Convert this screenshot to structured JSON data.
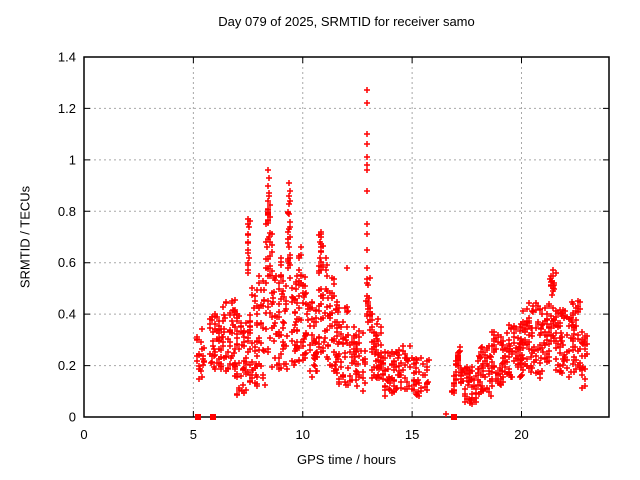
{
  "header": {
    "title": "Day 079 of 2025, SRMTID for receiver samo"
  },
  "chart_data": {
    "type": "scatter",
    "title": "Day 079 of 2025, SRMTID for receiver samo",
    "xlabel": "GPS time / hours",
    "ylabel": "SRMTID / TECUs",
    "xlim": [
      0,
      24
    ],
    "ylim": [
      0,
      1.4
    ],
    "xticks": {
      "values": [
        0,
        5,
        10,
        15,
        20
      ],
      "labels": [
        "0",
        "5",
        "10",
        "15",
        "20"
      ]
    },
    "yticks": {
      "values": [
        0,
        0.2,
        0.4,
        0.6,
        0.8,
        1.0,
        1.2,
        1.4
      ],
      "labels": [
        "0",
        "0.2",
        "0.4",
        "0.6",
        "0.8",
        "1",
        "1.2",
        "1.4"
      ]
    },
    "grid": true,
    "legend": "none",
    "marker": {
      "shape": "plus",
      "color": "#ff0000",
      "size": 7
    },
    "axis_color": "#000000",
    "grid_color": "#a8a8a8",
    "points": [
      [
        12.93,
        1.27
      ],
      [
        12.93,
        1.22
      ],
      [
        12.94,
        1.1
      ],
      [
        12.93,
        1.06
      ],
      [
        12.93,
        1.01
      ],
      [
        12.94,
        0.98
      ],
      [
        12.93,
        0.96
      ],
      [
        12.94,
        0.88
      ],
      [
        12.93,
        0.75
      ],
      [
        12.94,
        0.71
      ],
      [
        12.95,
        0.65
      ],
      [
        12.93,
        0.58
      ],
      [
        12.95,
        0.52
      ],
      [
        12.94,
        0.47
      ],
      [
        12.96,
        0.44
      ],
      [
        12.95,
        0.4
      ],
      [
        12.0,
        0.58
      ],
      [
        8.42,
        0.96
      ],
      [
        8.45,
        0.93
      ],
      [
        8.43,
        0.9
      ],
      [
        8.46,
        0.87
      ],
      [
        8.44,
        0.86
      ],
      [
        8.4,
        0.84
      ],
      [
        8.47,
        0.7
      ],
      [
        8.5,
        0.68
      ],
      [
        8.38,
        0.66
      ],
      [
        9.38,
        0.91
      ],
      [
        9.4,
        0.88
      ],
      [
        9.37,
        0.86
      ],
      [
        9.41,
        0.84
      ],
      [
        9.39,
        0.83
      ],
      [
        9.36,
        0.79
      ],
      [
        9.42,
        0.76
      ],
      [
        9.38,
        0.73
      ],
      [
        9.4,
        0.7
      ],
      [
        9.37,
        0.66
      ],
      [
        9.43,
        0.63
      ],
      [
        9.39,
        0.6
      ],
      [
        7.5,
        0.77
      ],
      [
        7.52,
        0.74
      ],
      [
        7.49,
        0.71
      ],
      [
        7.51,
        0.68
      ],
      [
        7.5,
        0.65
      ],
      [
        7.53,
        0.62
      ],
      [
        7.48,
        0.6
      ],
      [
        10.82,
        0.72
      ],
      [
        10.84,
        0.7
      ],
      [
        10.8,
        0.68
      ],
      [
        10.83,
        0.66
      ],
      [
        10.85,
        0.64
      ],
      [
        10.81,
        0.62
      ],
      [
        11.08,
        0.62
      ],
      [
        11.1,
        0.59
      ],
      [
        11.06,
        0.57
      ],
      [
        11.12,
        0.55
      ],
      [
        21.42,
        0.57
      ],
      [
        21.44,
        0.55
      ],
      [
        21.4,
        0.53
      ],
      [
        21.43,
        0.51
      ],
      [
        21.45,
        0.49
      ],
      [
        22.58,
        0.45
      ],
      [
        22.6,
        0.43
      ],
      [
        22.56,
        0.41
      ],
      [
        9.0,
        0.62
      ],
      [
        9.02,
        0.59
      ],
      [
        9.9,
        0.66
      ],
      [
        9.92,
        0.63
      ],
      [
        8.02,
        0.55
      ],
      [
        8.0,
        0.52
      ],
      [
        16.55,
        0.01
      ]
    ],
    "zero_squares": [
      5.2,
      5.9,
      16.9
    ],
    "bands": [
      [
        5.15,
        5.3,
        0.13,
        0.33,
        10
      ],
      [
        5.3,
        5.55,
        0.15,
        0.35,
        12
      ],
      [
        5.75,
        6.3,
        0.18,
        0.4,
        45
      ],
      [
        6.3,
        7.0,
        0.15,
        0.46,
        60
      ],
      [
        7.0,
        7.6,
        0.08,
        0.4,
        50
      ],
      [
        7.45,
        7.56,
        0.55,
        0.77,
        8
      ],
      [
        7.6,
        8.25,
        0.12,
        0.55,
        55
      ],
      [
        8.3,
        8.6,
        0.25,
        0.72,
        30
      ],
      [
        8.35,
        8.52,
        0.74,
        0.84,
        12
      ],
      [
        8.6,
        9.25,
        0.18,
        0.55,
        50
      ],
      [
        8.95,
        9.07,
        0.48,
        0.62,
        6
      ],
      [
        9.3,
        9.45,
        0.55,
        0.88,
        12
      ],
      [
        9.45,
        10.2,
        0.2,
        0.55,
        65
      ],
      [
        9.82,
        9.95,
        0.48,
        0.64,
        8
      ],
      [
        10.2,
        10.65,
        0.15,
        0.45,
        40
      ],
      [
        10.7,
        11.0,
        0.25,
        0.6,
        25
      ],
      [
        10.76,
        10.9,
        0.58,
        0.72,
        8
      ],
      [
        11.0,
        11.5,
        0.15,
        0.56,
        40
      ],
      [
        11.5,
        12.2,
        0.12,
        0.45,
        55
      ],
      [
        12.2,
        12.85,
        0.1,
        0.35,
        45
      ],
      [
        12.9,
        13.1,
        0.3,
        0.55,
        15
      ],
      [
        13.1,
        13.6,
        0.12,
        0.4,
        30
      ],
      [
        13.6,
        14.3,
        0.08,
        0.26,
        45
      ],
      [
        14.3,
        15.1,
        0.1,
        0.28,
        45
      ],
      [
        15.1,
        15.75,
        0.08,
        0.23,
        30
      ],
      [
        17.4,
        18.0,
        0.05,
        0.2,
        45
      ],
      [
        18.0,
        18.7,
        0.08,
        0.28,
        55
      ],
      [
        18.7,
        19.4,
        0.12,
        0.34,
        55
      ],
      [
        19.4,
        20.0,
        0.15,
        0.36,
        50
      ],
      [
        20.0,
        20.35,
        0.18,
        0.42,
        30
      ],
      [
        20.35,
        20.95,
        0.15,
        0.45,
        50
      ],
      [
        21.0,
        21.3,
        0.2,
        0.45,
        30
      ],
      [
        21.3,
        21.55,
        0.28,
        0.57,
        25
      ],
      [
        21.55,
        22.25,
        0.15,
        0.42,
        55
      ],
      [
        22.3,
        22.7,
        0.15,
        0.45,
        40
      ],
      [
        22.7,
        23.0,
        0.1,
        0.33,
        25
      ]
    ],
    "streaks": [
      [
        16.85,
        17.15,
        0.08,
        0.27,
        0.06,
        30
      ],
      [
        17.0,
        17.35,
        0.26,
        0.12,
        0.06,
        25
      ],
      [
        13.05,
        13.55,
        0.4,
        0.15,
        0.08,
        25
      ]
    ]
  }
}
